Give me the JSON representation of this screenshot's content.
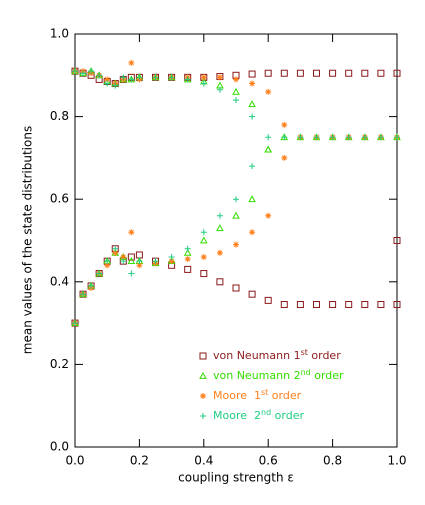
{
  "chart_data": {
    "type": "scatter",
    "xlabel": "coupling strength ε",
    "ylabel": "mean values of the state distributions",
    "xlim": [
      0,
      1
    ],
    "ylim": [
      0,
      1
    ],
    "xticks": [
      {
        "value": 0,
        "label": "0.0"
      },
      0.2,
      0.4,
      0.6,
      0.8,
      {
        "value": 1,
        "label": "1.0"
      }
    ],
    "yticks": [
      {
        "value": 0,
        "label": "0.0"
      },
      0.2,
      0.4,
      0.6,
      0.8,
      {
        "value": 1,
        "label": "1.0"
      }
    ],
    "legend": "lower right",
    "series": [
      {
        "name": "von Neumann 1st order",
        "color": "#8b1a1a",
        "marker": "square",
        "x": [
          0,
          0.025,
          0.05,
          0.075,
          0.1,
          0.125,
          0.15,
          0.175,
          0.2,
          0.25,
          0.3,
          0.35,
          0.4,
          0.45,
          0.5,
          0.55,
          0.6,
          0.65,
          0.7,
          0.75,
          0.8,
          0.85,
          0.9,
          0.95,
          1,
          0,
          0.025,
          0.05,
          0.075,
          0.1,
          0.125,
          0.15,
          0.175,
          0.2,
          0.25,
          0.3,
          0.35,
          0.4,
          0.45,
          0.5,
          0.55,
          0.6,
          0.65,
          0.7,
          0.75,
          0.8,
          0.85,
          0.9,
          0.95,
          1,
          1
        ],
        "values": [
          0.91,
          0.905,
          0.9,
          0.89,
          0.885,
          0.88,
          0.89,
          0.895,
          0.895,
          0.895,
          0.895,
          0.895,
          0.895,
          0.897,
          0.9,
          0.903,
          0.905,
          0.905,
          0.905,
          0.905,
          0.905,
          0.905,
          0.905,
          0.905,
          0.905,
          0.3,
          0.37,
          0.39,
          0.42,
          0.45,
          0.48,
          0.45,
          0.46,
          0.465,
          0.45,
          0.44,
          0.43,
          0.42,
          0.4,
          0.385,
          0.37,
          0.355,
          0.345,
          0.345,
          0.345,
          0.345,
          0.345,
          0.345,
          0.345,
          0.345,
          0.5
        ]
      },
      {
        "name": "von Neumann 2nd order",
        "color": "#33dd00",
        "marker": "triangle",
        "x": [
          0,
          0.025,
          0.05,
          0.075,
          0.1,
          0.125,
          0.15,
          0.175,
          0.2,
          0.25,
          0.3,
          0.35,
          0.4,
          0.45,
          0.5,
          0.55,
          0.6,
          0.65,
          0.7,
          0.75,
          0.8,
          0.85,
          0.9,
          0.95,
          1,
          0,
          0.025,
          0.05,
          0.075,
          0.1,
          0.125,
          0.15,
          0.175,
          0.2,
          0.25,
          0.3,
          0.35,
          0.4,
          0.45,
          0.5,
          0.55,
          0.6
        ],
        "values": [
          0.91,
          0.905,
          0.91,
          0.9,
          0.885,
          0.88,
          0.89,
          0.89,
          0.895,
          0.895,
          0.895,
          0.89,
          0.885,
          0.875,
          0.86,
          0.83,
          0.72,
          0.75,
          0.75,
          0.75,
          0.75,
          0.75,
          0.75,
          0.75,
          0.75,
          0.3,
          0.37,
          0.39,
          0.42,
          0.45,
          0.47,
          0.46,
          0.45,
          0.45,
          0.445,
          0.45,
          0.47,
          0.5,
          0.53,
          0.56,
          0.6,
          0.72
        ]
      },
      {
        "name": "Moore  1st order",
        "color": "#ff7f1a",
        "marker": "asterisk",
        "x": [
          0,
          0.025,
          0.05,
          0.075,
          0.1,
          0.125,
          0.15,
          0.175,
          0.2,
          0.25,
          0.3,
          0.35,
          0.4,
          0.45,
          0.5,
          0.55,
          0.6,
          0.65,
          0.7,
          0.75,
          0.8,
          0.85,
          0.9,
          0.95,
          1,
          0,
          0.025,
          0.05,
          0.075,
          0.1,
          0.125,
          0.15,
          0.175,
          0.2,
          0.25,
          0.3,
          0.35,
          0.4,
          0.45,
          0.5,
          0.55,
          0.6,
          0.65
        ],
        "values": [
          0.91,
          0.91,
          0.905,
          0.9,
          0.89,
          0.88,
          0.89,
          0.93,
          0.89,
          0.895,
          0.895,
          0.895,
          0.895,
          0.895,
          0.89,
          0.88,
          0.86,
          0.78,
          0.75,
          0.75,
          0.75,
          0.75,
          0.75,
          0.75,
          0.75,
          0.3,
          0.37,
          0.385,
          0.42,
          0.44,
          0.47,
          0.46,
          0.52,
          0.44,
          0.445,
          0.45,
          0.455,
          0.46,
          0.47,
          0.49,
          0.52,
          0.56,
          0.7
        ]
      },
      {
        "name": "Moore  2nd order",
        "color": "#1fcc80",
        "marker": "plus",
        "x": [
          0,
          0.025,
          0.05,
          0.075,
          0.1,
          0.125,
          0.15,
          0.175,
          0.2,
          0.25,
          0.3,
          0.35,
          0.4,
          0.45,
          0.5,
          0.55,
          0.6,
          0.65,
          0.7,
          0.75,
          0.8,
          0.85,
          0.9,
          0.95,
          1,
          0,
          0.025,
          0.05,
          0.075,
          0.1,
          0.125,
          0.15,
          0.175,
          0.2,
          0.25,
          0.3,
          0.35,
          0.4,
          0.45,
          0.5,
          0.55
        ],
        "values": [
          0.91,
          0.905,
          0.91,
          0.9,
          0.88,
          0.875,
          0.895,
          0.89,
          0.895,
          0.895,
          0.895,
          0.89,
          0.88,
          0.865,
          0.84,
          0.8,
          0.75,
          0.75,
          0.75,
          0.75,
          0.75,
          0.75,
          0.75,
          0.75,
          0.75,
          0.3,
          0.37,
          0.39,
          0.42,
          0.45,
          0.48,
          0.45,
          0.42,
          0.45,
          0.45,
          0.46,
          0.48,
          0.52,
          0.56,
          0.6,
          0.68
        ]
      }
    ]
  }
}
